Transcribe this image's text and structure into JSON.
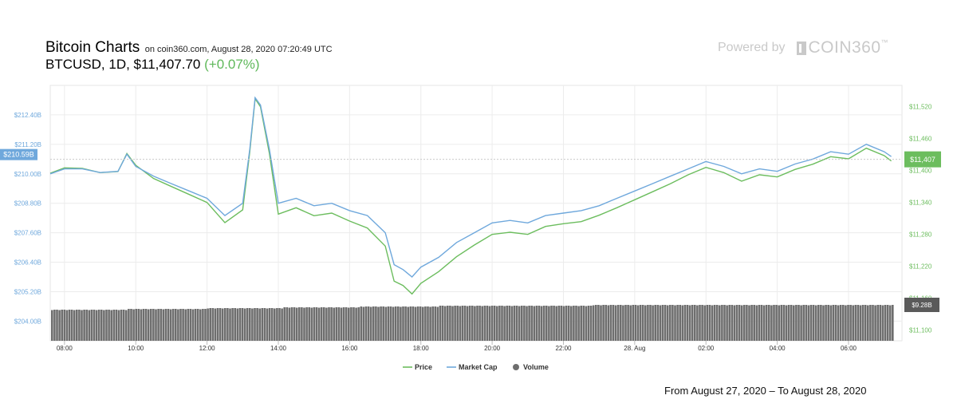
{
  "header": {
    "title": "Bitcoin Charts",
    "source_line": "on coin360.com, August 28, 2020 07:20:49 UTC",
    "pair": "BTCUSD",
    "interval": "1D",
    "price": "$11,407.70",
    "change": "(+0.07%)"
  },
  "branding": {
    "powered_by": "Powered by",
    "brand": "COIN360",
    "tm": "™"
  },
  "footer": {
    "range_text": "From August 27, 2020 – To August 28, 2020"
  },
  "colors": {
    "price": "#6cbd5e",
    "market_cap": "#6fa8dc",
    "volume": "#6e6e6e",
    "change_positive": "#5fb85a"
  },
  "chart_data": {
    "type": "line",
    "x_tick_labels": [
      "08:00",
      "10:00",
      "12:00",
      "14:00",
      "16:00",
      "18:00",
      "20:00",
      "22:00",
      "28. Aug",
      "02:00",
      "04:00",
      "06:00"
    ],
    "left_axis_ticks": [
      "$212.40B",
      "$211.20B",
      "$210.00B",
      "$208.80B",
      "$207.60B",
      "$206.40B",
      "$205.20B",
      "$204.00B"
    ],
    "right_axis_ticks": [
      "$11,520",
      "$11,460",
      "$11,400",
      "$11,340",
      "$11,280",
      "$11,220",
      "$11,160",
      "$11,100"
    ],
    "left_badge": "$210.59B",
    "price_badge": "$11,407",
    "volume_badge": "$9.28B",
    "legend": [
      {
        "key": "price",
        "label": "Price"
      },
      {
        "key": "market_cap",
        "label": "Market Cap"
      },
      {
        "key": "volume",
        "label": "Volume"
      }
    ],
    "x_range_hours": [
      7.6,
      31.5
    ],
    "market_cap_range_B": [
      203.2,
      213.6
    ],
    "price_range": [
      11080,
      11560
    ],
    "grid": true,
    "legend_position": "bottom-center",
    "series": [
      {
        "name": "Market Cap",
        "unit": "USD billions",
        "points": [
          [
            7.6,
            210.0
          ],
          [
            8.0,
            210.2
          ],
          [
            8.5,
            210.2
          ],
          [
            9.0,
            210.05
          ],
          [
            9.5,
            210.1
          ],
          [
            9.75,
            210.8
          ],
          [
            10.0,
            210.3
          ],
          [
            10.5,
            209.9
          ],
          [
            11.0,
            209.6
          ],
          [
            11.5,
            209.3
          ],
          [
            12.0,
            209.0
          ],
          [
            12.5,
            208.3
          ],
          [
            13.0,
            208.8
          ],
          [
            13.2,
            211.0
          ],
          [
            13.35,
            213.1
          ],
          [
            13.5,
            212.8
          ],
          [
            13.75,
            211.0
          ],
          [
            14.0,
            208.8
          ],
          [
            14.5,
            209.0
          ],
          [
            15.0,
            208.7
          ],
          [
            15.5,
            208.8
          ],
          [
            16.0,
            208.5
          ],
          [
            16.5,
            208.3
          ],
          [
            17.0,
            207.6
          ],
          [
            17.25,
            206.3
          ],
          [
            17.5,
            206.1
          ],
          [
            17.75,
            205.8
          ],
          [
            18.0,
            206.2
          ],
          [
            18.5,
            206.6
          ],
          [
            19.0,
            207.2
          ],
          [
            19.5,
            207.6
          ],
          [
            20.0,
            208.0
          ],
          [
            20.5,
            208.1
          ],
          [
            21.0,
            208.0
          ],
          [
            21.5,
            208.3
          ],
          [
            22.0,
            208.4
          ],
          [
            22.5,
            208.5
          ],
          [
            23.0,
            208.7
          ],
          [
            23.5,
            209.0
          ],
          [
            24.0,
            209.3
          ],
          [
            24.5,
            209.6
          ],
          [
            25.0,
            209.9
          ],
          [
            25.5,
            210.2
          ],
          [
            26.0,
            210.5
          ],
          [
            26.5,
            210.3
          ],
          [
            27.0,
            210.0
          ],
          [
            27.5,
            210.2
          ],
          [
            28.0,
            210.1
          ],
          [
            28.5,
            210.4
          ],
          [
            29.0,
            210.6
          ],
          [
            29.5,
            210.9
          ],
          [
            30.0,
            210.8
          ],
          [
            30.5,
            211.2
          ],
          [
            31.0,
            210.9
          ],
          [
            31.2,
            210.7
          ]
        ]
      },
      {
        "name": "Price",
        "unit": "USD",
        "points": [
          [
            7.6,
            11395
          ],
          [
            8.0,
            11405
          ],
          [
            8.5,
            11404
          ],
          [
            9.0,
            11396
          ],
          [
            9.5,
            11398
          ],
          [
            9.75,
            11432
          ],
          [
            10.0,
            11410
          ],
          [
            10.5,
            11385
          ],
          [
            11.0,
            11370
          ],
          [
            11.5,
            11355
          ],
          [
            12.0,
            11340
          ],
          [
            12.5,
            11302
          ],
          [
            13.0,
            11326
          ],
          [
            13.2,
            11435
          ],
          [
            13.35,
            11535
          ],
          [
            13.5,
            11520
          ],
          [
            13.75,
            11432
          ],
          [
            14.0,
            11318
          ],
          [
            14.5,
            11330
          ],
          [
            15.0,
            11315
          ],
          [
            15.5,
            11320
          ],
          [
            16.0,
            11305
          ],
          [
            16.5,
            11292
          ],
          [
            17.0,
            11258
          ],
          [
            17.25,
            11192
          ],
          [
            17.5,
            11184
          ],
          [
            17.75,
            11168
          ],
          [
            18.0,
            11188
          ],
          [
            18.5,
            11210
          ],
          [
            19.0,
            11238
          ],
          [
            19.5,
            11260
          ],
          [
            20.0,
            11280
          ],
          [
            20.5,
            11284
          ],
          [
            21.0,
            11280
          ],
          [
            21.5,
            11295
          ],
          [
            22.0,
            11300
          ],
          [
            22.5,
            11304
          ],
          [
            23.0,
            11316
          ],
          [
            23.5,
            11330
          ],
          [
            24.0,
            11345
          ],
          [
            24.5,
            11360
          ],
          [
            25.0,
            11375
          ],
          [
            25.5,
            11392
          ],
          [
            26.0,
            11406
          ],
          [
            26.5,
            11396
          ],
          [
            27.0,
            11380
          ],
          [
            27.5,
            11392
          ],
          [
            28.0,
            11388
          ],
          [
            28.5,
            11402
          ],
          [
            29.0,
            11412
          ],
          [
            29.5,
            11426
          ],
          [
            30.0,
            11422
          ],
          [
            30.5,
            11442
          ],
          [
            31.0,
            11428
          ],
          [
            31.2,
            11418
          ]
        ]
      },
      {
        "name": "Volume",
        "unit": "USD billions",
        "latest": 9.28
      }
    ]
  }
}
